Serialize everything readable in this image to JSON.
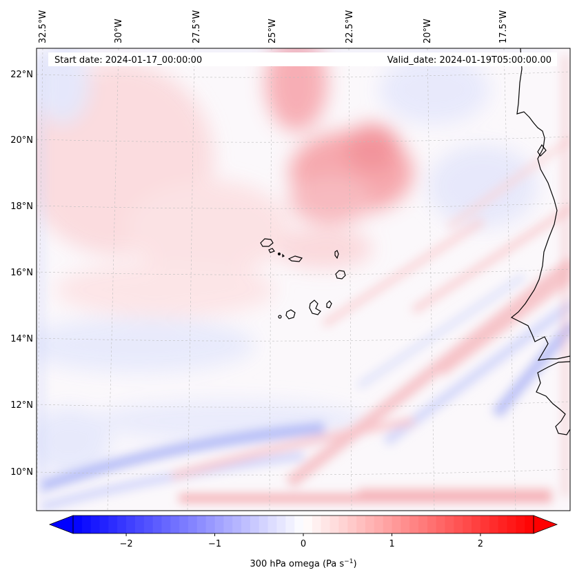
{
  "map": {
    "header": {
      "start_label": "Start date: 2024-01-17_00:00:00",
      "valid_label": "Valid_date: 2024-01-19T05:00:00.00"
    },
    "lon_labels": [
      "32.5°W",
      "30°W",
      "27.5°W",
      "25°W",
      "22.5°W",
      "20°W",
      "17.5°W"
    ],
    "lat_labels": [
      "22°N",
      "20°N",
      "18°N",
      "16°N",
      "14°N",
      "12°N",
      "10°N"
    ],
    "colorbar": {
      "ticks": [
        "−2",
        "−1",
        "0",
        "1",
        "2"
      ],
      "label_main": "300 hPa omega (Pa s",
      "label_sup": "−1",
      "label_close": ")",
      "min": -2.6,
      "max": 2.6,
      "colors": {
        "negative": "#0000ff",
        "zero": "#ffffff",
        "positive": "#ff0000"
      }
    }
  }
}
